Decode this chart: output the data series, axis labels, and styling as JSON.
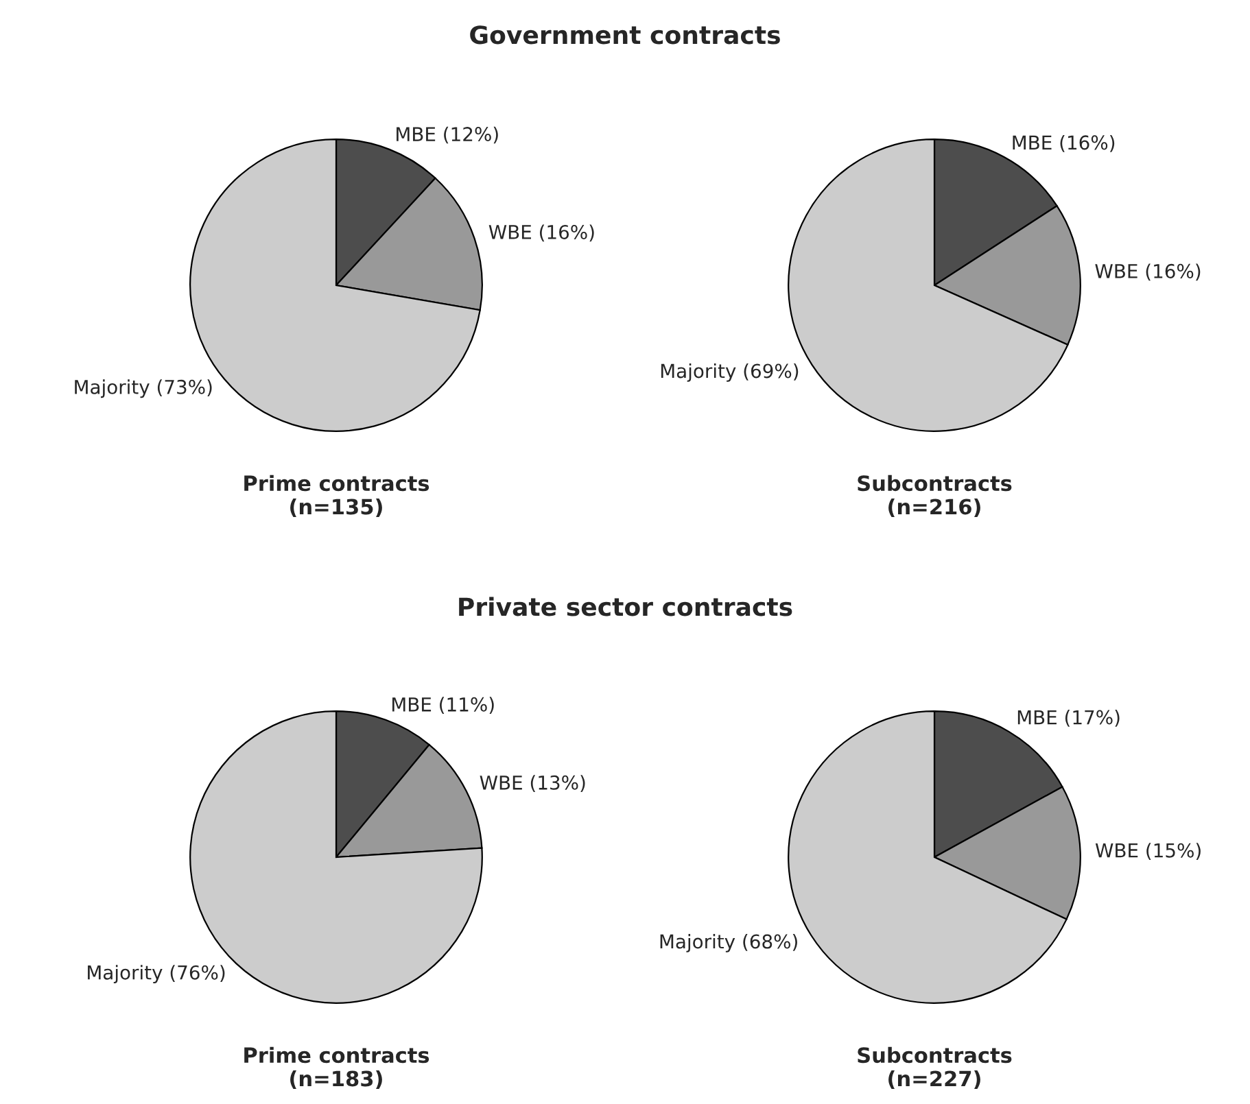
{
  "chart_data": [
    {
      "type": "pie",
      "title": "Government contracts",
      "xlabel": "Prime contracts\n(n=135)",
      "categories": [
        "MBE (12%)",
        "WBE (16%)",
        "Majority (73%)"
      ],
      "values": [
        12,
        16,
        73
      ],
      "colors": [
        "#4d4d4d",
        "#999999",
        "#cccccc"
      ]
    },
    {
      "type": "pie",
      "xlabel": "Subcontracts\n(n=216)",
      "categories": [
        "MBE (16%)",
        "WBE (16%)",
        "Majority (69%)"
      ],
      "values": [
        16,
        16,
        69
      ],
      "colors": [
        "#4d4d4d",
        "#999999",
        "#cccccc"
      ]
    },
    {
      "type": "pie",
      "title": "Private sector contracts",
      "xlabel": "Prime contracts\n(n=183)",
      "categories": [
        "MBE (11%)",
        "WBE (13%)",
        "Majority (76%)"
      ],
      "values": [
        11,
        13,
        76
      ],
      "colors": [
        "#4d4d4d",
        "#999999",
        "#cccccc"
      ]
    },
    {
      "type": "pie",
      "xlabel": "Subcontracts\n(n=227)",
      "categories": [
        "MBE (17%)",
        "WBE (15%)",
        "Majority (68%)"
      ],
      "values": [
        17,
        15,
        68
      ],
      "colors": [
        "#4d4d4d",
        "#999999",
        "#cccccc"
      ]
    }
  ]
}
